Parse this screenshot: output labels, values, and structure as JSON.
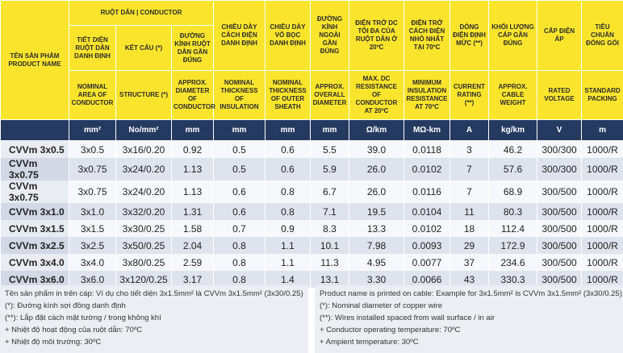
{
  "table": {
    "product_header": {
      "vi": "TÊN SẢN PHẨM",
      "en": "PRODUCT NAME"
    },
    "group": "RUỘT DẪN | CONDUCTOR",
    "columns": [
      {
        "vi": "TIẾT DIỆN RUỘT DẪN DANH ĐỊNH",
        "en": "NOMINAL AREA OF CONDUCTOR",
        "unit": "mm²"
      },
      {
        "vi": "KẾT CẤU (*)",
        "en": "STRUCTURE (*)",
        "unit": "No/mm²"
      },
      {
        "vi": "ĐƯỜNG KÍNH RUỘT DẪN GẦN ĐÚNG",
        "en": "APPROX. DIAMETER OF CONDUCTOR",
        "unit": "mm"
      },
      {
        "vi": "CHIỀU DÀY CÁCH ĐIỆN DANH ĐỊNH",
        "en": "NOMINAL THICKNESS OF INSULATION",
        "unit": "mm"
      },
      {
        "vi": "CHIỀU DÀY VỎ BỌC DANH ĐỊNH",
        "en": "NOMINAL THICKNESS OF OUTER SHEATH",
        "unit": "mm"
      },
      {
        "vi": "ĐƯỜNG KÍNH NGOÀI GẦN ĐÚNG",
        "en": "APPROX. OVERALL DIAMETER",
        "unit": "mm"
      },
      {
        "vi": "ĐIỆN TRỞ DC TỐI ĐA CỦA RUỘT DẪN Ở 20ºC",
        "en": "MAX. DC RESISTANCE OF CONDUCTOR AT 20ºC",
        "unit": "Ω/km"
      },
      {
        "vi": "ĐIỆN TRỞ CÁCH ĐIỆN NHỎ NHẤT TẠI 70ºC",
        "en": "MINIMUM INSULATION RESISTANCE AT 70ºC",
        "unit": "MΩ-km"
      },
      {
        "vi": "DÒNG ĐIỆN ĐỊNH MỨC (**)",
        "en": "CURRENT RATING (**)",
        "unit": "A"
      },
      {
        "vi": "KHỐI LƯỢNG CÁP GẦN ĐÚNG",
        "en": "APPROX. CABLE WEIGHT",
        "unit": "kg/km"
      },
      {
        "vi": "CẤP ĐIỆN ÁP",
        "en": "RATED VOLTAGE",
        "unit": "V"
      },
      {
        "vi": "TIÊU CHUẨN ĐÓNG GÓI",
        "en": "STANDARD PACKING",
        "unit": "m"
      }
    ],
    "rows": [
      [
        "CVVm 3x0.5",
        "3x0.5",
        "3x16/0.20",
        "0.92",
        "0.5",
        "0.6",
        "5.5",
        "39.0",
        "0.0118",
        "3",
        "46.2",
        "300/300",
        "1000/R"
      ],
      [
        "CVVm 3x0.75",
        "3x0.75",
        "3x24/0.20",
        "1.13",
        "0.5",
        "0.6",
        "5.9",
        "26.0",
        "0.0102",
        "7",
        "57.6",
        "300/300",
        "1000/R"
      ],
      [
        "CVVm 3x0.75",
        "3x0.75",
        "3x24/0.20",
        "1.13",
        "0.6",
        "0.8",
        "6.7",
        "26.0",
        "0.0116",
        "7",
        "68.9",
        "300/500",
        "1000/R"
      ],
      [
        "CVVm 3x1.0",
        "3x1.0",
        "3x32/0.20",
        "1.31",
        "0.6",
        "0.8",
        "7.1",
        "19.5",
        "0.0104",
        "11",
        "80.3",
        "300/500",
        "1000/R"
      ],
      [
        "CVVm 3x1.5",
        "3x1.5",
        "3x30/0.25",
        "1.58",
        "0.7",
        "0.9",
        "8.3",
        "13.3",
        "0.0102",
        "18",
        "112.4",
        "300/500",
        "1000/R"
      ],
      [
        "CVVm 3x2.5",
        "3x2.5",
        "3x50/0.25",
        "2.04",
        "0.8",
        "1.1",
        "10.1",
        "7.98",
        "0.0093",
        "29",
        "172.9",
        "300/500",
        "1000/R"
      ],
      [
        "CVVm 3x4.0",
        "3x4.0",
        "3x80/0.25",
        "2.59",
        "0.8",
        "1.1",
        "11.3",
        "4.95",
        "0.0077",
        "37",
        "234.6",
        "300/500",
        "1000/R"
      ],
      [
        "CVVm 3x6.0",
        "3x6.0",
        "3x120/0.25",
        "3.17",
        "0.8",
        "1.4",
        "13.1",
        "3.30",
        "0.0066",
        "43",
        "330.3",
        "300/500",
        "1000/R"
      ]
    ]
  },
  "notes": {
    "left": [
      "Tên sản phẩm in trên cáp: Ví dụ cho tiết diện 3x1.5mm² là CVVm 3x1.5mm² (3x30/0.25)",
      "(*): Đường kính sợi đồng danh định",
      "(**): Lắp đặt cách mặt tường / trong không khí",
      "+ Nhiệt độ hoạt động của ruột dẫn: 70ºC",
      "+ Nhiệt độ môi trường: 30ºC"
    ],
    "right": [
      "Product name is printed on cable: Example for 3x1.5mm² is CVVm 3x1.5mm² (3x30/0.25)",
      "(*): Nominal diameter of copper wire",
      "(**): Wires installed spaced from wall surface / in air",
      "+ Conductor operating temperature: 70ºC",
      "+ Ampient temperature: 30ºC"
    ]
  }
}
